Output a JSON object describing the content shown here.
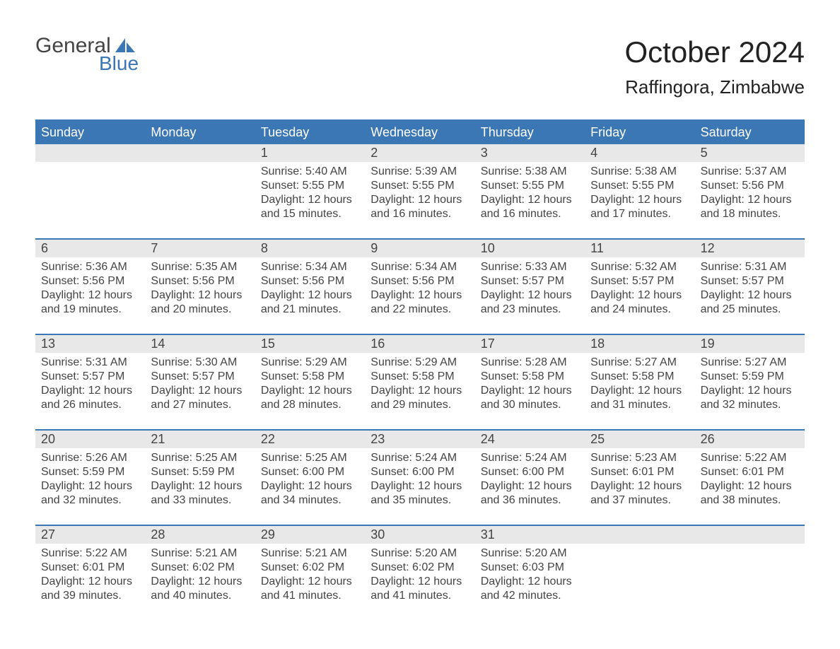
{
  "logo": {
    "line1": "General",
    "line2": "Blue",
    "mark_color": "#3b76b5"
  },
  "title": "October 2024",
  "subtitle": "Raffingora, Zimbabwe",
  "colors": {
    "header_bg": "#3b76b5",
    "header_text": "#ffffff",
    "daynum_bg": "#e8e8e8",
    "text": "#444444",
    "divider": "#3b76b5",
    "page_bg": "#ffffff"
  },
  "typography": {
    "title_fontsize": 42,
    "subtitle_fontsize": 26,
    "weekday_fontsize": 18,
    "daynum_fontsize": 18,
    "body_fontsize": 16
  },
  "weekdays": [
    "Sunday",
    "Monday",
    "Tuesday",
    "Wednesday",
    "Thursday",
    "Friday",
    "Saturday"
  ],
  "weeks": [
    [
      {
        "num": "",
        "lines": []
      },
      {
        "num": "",
        "lines": []
      },
      {
        "num": "1",
        "lines": [
          "Sunrise: 5:40 AM",
          "Sunset: 5:55 PM",
          "Daylight: 12 hours",
          "and 15 minutes."
        ]
      },
      {
        "num": "2",
        "lines": [
          "Sunrise: 5:39 AM",
          "Sunset: 5:55 PM",
          "Daylight: 12 hours",
          "and 16 minutes."
        ]
      },
      {
        "num": "3",
        "lines": [
          "Sunrise: 5:38 AM",
          "Sunset: 5:55 PM",
          "Daylight: 12 hours",
          "and 16 minutes."
        ]
      },
      {
        "num": "4",
        "lines": [
          "Sunrise: 5:38 AM",
          "Sunset: 5:55 PM",
          "Daylight: 12 hours",
          "and 17 minutes."
        ]
      },
      {
        "num": "5",
        "lines": [
          "Sunrise: 5:37 AM",
          "Sunset: 5:56 PM",
          "Daylight: 12 hours",
          "and 18 minutes."
        ]
      }
    ],
    [
      {
        "num": "6",
        "lines": [
          "Sunrise: 5:36 AM",
          "Sunset: 5:56 PM",
          "Daylight: 12 hours",
          "and 19 minutes."
        ]
      },
      {
        "num": "7",
        "lines": [
          "Sunrise: 5:35 AM",
          "Sunset: 5:56 PM",
          "Daylight: 12 hours",
          "and 20 minutes."
        ]
      },
      {
        "num": "8",
        "lines": [
          "Sunrise: 5:34 AM",
          "Sunset: 5:56 PM",
          "Daylight: 12 hours",
          "and 21 minutes."
        ]
      },
      {
        "num": "9",
        "lines": [
          "Sunrise: 5:34 AM",
          "Sunset: 5:56 PM",
          "Daylight: 12 hours",
          "and 22 minutes."
        ]
      },
      {
        "num": "10",
        "lines": [
          "Sunrise: 5:33 AM",
          "Sunset: 5:57 PM",
          "Daylight: 12 hours",
          "and 23 minutes."
        ]
      },
      {
        "num": "11",
        "lines": [
          "Sunrise: 5:32 AM",
          "Sunset: 5:57 PM",
          "Daylight: 12 hours",
          "and 24 minutes."
        ]
      },
      {
        "num": "12",
        "lines": [
          "Sunrise: 5:31 AM",
          "Sunset: 5:57 PM",
          "Daylight: 12 hours",
          "and 25 minutes."
        ]
      }
    ],
    [
      {
        "num": "13",
        "lines": [
          "Sunrise: 5:31 AM",
          "Sunset: 5:57 PM",
          "Daylight: 12 hours",
          "and 26 minutes."
        ]
      },
      {
        "num": "14",
        "lines": [
          "Sunrise: 5:30 AM",
          "Sunset: 5:57 PM",
          "Daylight: 12 hours",
          "and 27 minutes."
        ]
      },
      {
        "num": "15",
        "lines": [
          "Sunrise: 5:29 AM",
          "Sunset: 5:58 PM",
          "Daylight: 12 hours",
          "and 28 minutes."
        ]
      },
      {
        "num": "16",
        "lines": [
          "Sunrise: 5:29 AM",
          "Sunset: 5:58 PM",
          "Daylight: 12 hours",
          "and 29 minutes."
        ]
      },
      {
        "num": "17",
        "lines": [
          "Sunrise: 5:28 AM",
          "Sunset: 5:58 PM",
          "Daylight: 12 hours",
          "and 30 minutes."
        ]
      },
      {
        "num": "18",
        "lines": [
          "Sunrise: 5:27 AM",
          "Sunset: 5:58 PM",
          "Daylight: 12 hours",
          "and 31 minutes."
        ]
      },
      {
        "num": "19",
        "lines": [
          "Sunrise: 5:27 AM",
          "Sunset: 5:59 PM",
          "Daylight: 12 hours",
          "and 32 minutes."
        ]
      }
    ],
    [
      {
        "num": "20",
        "lines": [
          "Sunrise: 5:26 AM",
          "Sunset: 5:59 PM",
          "Daylight: 12 hours",
          "and 32 minutes."
        ]
      },
      {
        "num": "21",
        "lines": [
          "Sunrise: 5:25 AM",
          "Sunset: 5:59 PM",
          "Daylight: 12 hours",
          "and 33 minutes."
        ]
      },
      {
        "num": "22",
        "lines": [
          "Sunrise: 5:25 AM",
          "Sunset: 6:00 PM",
          "Daylight: 12 hours",
          "and 34 minutes."
        ]
      },
      {
        "num": "23",
        "lines": [
          "Sunrise: 5:24 AM",
          "Sunset: 6:00 PM",
          "Daylight: 12 hours",
          "and 35 minutes."
        ]
      },
      {
        "num": "24",
        "lines": [
          "Sunrise: 5:24 AM",
          "Sunset: 6:00 PM",
          "Daylight: 12 hours",
          "and 36 minutes."
        ]
      },
      {
        "num": "25",
        "lines": [
          "Sunrise: 5:23 AM",
          "Sunset: 6:01 PM",
          "Daylight: 12 hours",
          "and 37 minutes."
        ]
      },
      {
        "num": "26",
        "lines": [
          "Sunrise: 5:22 AM",
          "Sunset: 6:01 PM",
          "Daylight: 12 hours",
          "and 38 minutes."
        ]
      }
    ],
    [
      {
        "num": "27",
        "lines": [
          "Sunrise: 5:22 AM",
          "Sunset: 6:01 PM",
          "Daylight: 12 hours",
          "and 39 minutes."
        ]
      },
      {
        "num": "28",
        "lines": [
          "Sunrise: 5:21 AM",
          "Sunset: 6:02 PM",
          "Daylight: 12 hours",
          "and 40 minutes."
        ]
      },
      {
        "num": "29",
        "lines": [
          "Sunrise: 5:21 AM",
          "Sunset: 6:02 PM",
          "Daylight: 12 hours",
          "and 41 minutes."
        ]
      },
      {
        "num": "30",
        "lines": [
          "Sunrise: 5:20 AM",
          "Sunset: 6:02 PM",
          "Daylight: 12 hours",
          "and 41 minutes."
        ]
      },
      {
        "num": "31",
        "lines": [
          "Sunrise: 5:20 AM",
          "Sunset: 6:03 PM",
          "Daylight: 12 hours",
          "and 42 minutes."
        ]
      },
      {
        "num": "",
        "lines": []
      },
      {
        "num": "",
        "lines": []
      }
    ]
  ]
}
